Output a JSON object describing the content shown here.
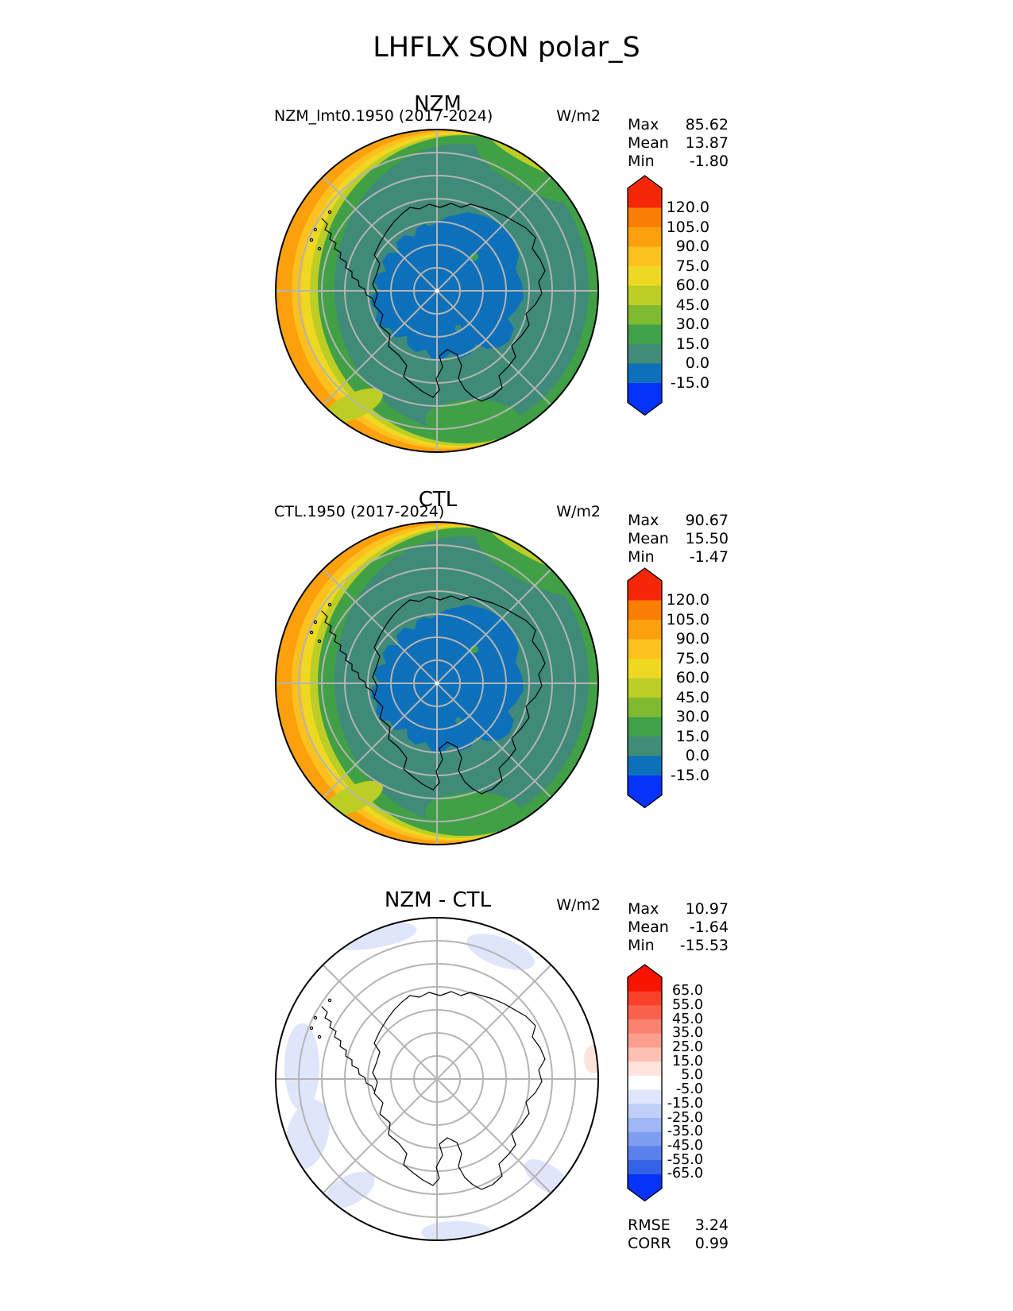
{
  "title": "LHFLX SON polar_S",
  "panels": [
    {
      "name": "NZM",
      "left_label": "NZM_lmt0.1950 (2017-2024)",
      "center_label": "NZM",
      "units": "W/m2",
      "stats": [
        {
          "label": "Max",
          "value": "85.62"
        },
        {
          "label": "Mean",
          "value": "13.87"
        },
        {
          "label": "Min",
          "value": "-1.80"
        }
      ],
      "colorbar": {
        "ticks": [
          "120.0",
          "105.0",
          "90.0",
          "75.0",
          "60.0",
          "45.0",
          "30.0",
          "15.0",
          "0.0",
          "-15.0"
        ],
        "colors": [
          "#F42808",
          "#FA7E04",
          "#FCA00C",
          "#FCC11E",
          "#EFD822",
          "#BCCE26",
          "#7FBA30",
          "#3FA14A",
          "#418C79",
          "#0D70BA",
          "#0633FA"
        ]
      }
    },
    {
      "name": "CTL",
      "left_label": "CTL.1950 (2017-2024)",
      "center_label": "CTL",
      "units": "W/m2",
      "stats": [
        {
          "label": "Max",
          "value": "90.67"
        },
        {
          "label": "Mean",
          "value": "15.50"
        },
        {
          "label": "Min",
          "value": "-1.47"
        }
      ],
      "colorbar": {
        "ticks": [
          "120.0",
          "105.0",
          "90.0",
          "75.0",
          "60.0",
          "45.0",
          "30.0",
          "15.0",
          "0.0",
          "-15.0"
        ],
        "colors": [
          "#F42808",
          "#FA7E04",
          "#FCA00C",
          "#FCC11E",
          "#EFD822",
          "#BCCE26",
          "#7FBA30",
          "#3FA14A",
          "#418C79",
          "#0D70BA",
          "#0633FA"
        ]
      }
    },
    {
      "name": "NZM - CTL",
      "center_label": "NZM - CTL",
      "units": "W/m2",
      "stats": [
        {
          "label": "Max",
          "value": "10.97"
        },
        {
          "label": "Mean",
          "value": "-1.64"
        },
        {
          "label": "Min",
          "value": "-15.53"
        }
      ],
      "colorbar": {
        "ticks": [
          "65.0",
          "55.0",
          "45.0",
          "35.0",
          "25.0",
          "15.0",
          "5.0",
          "-5.0",
          "-15.0",
          "-25.0",
          "-35.0",
          "-45.0",
          "-55.0",
          "-65.0"
        ],
        "colors": [
          "#F81400",
          "#F9402A",
          "#FA614C",
          "#FB826E",
          "#FC9F8F",
          "#FDC1B4",
          "#FEE3DC",
          "#FFFFFF",
          "#DFE6FB",
          "#C0CFF8",
          "#9FB7F4",
          "#7E9DF0",
          "#5A81EB",
          "#3563E6",
          "#0633FA"
        ]
      },
      "extra_stats": [
        {
          "label": "RMSE",
          "value": "3.24"
        },
        {
          "label": "CORR",
          "value": "0.99"
        }
      ]
    }
  ],
  "map_palette": {
    "ocean_teal": "#3F8A78",
    "interior_blue": "#0D70BA",
    "coastal_green": "#41A046",
    "edge_yellow_green": "#BCCE26",
    "edge_yellow": "#EFD822",
    "edge_amber": "#FCC11E",
    "edge_orange": "#FCA00C",
    "diff_negative_blue": "#DFE6FB",
    "diff_positive_pink": "#FEE3DC",
    "gridline_gray": "#B4B4B4"
  },
  "chart_data": [
    {
      "type": "heatmap",
      "title": "NZM",
      "subtitle": "NZM_lmt0.1950 (2017-2024)",
      "units": "W/m2",
      "projection": "south polar stereographic",
      "levels": [
        -15.0,
        0.0,
        15.0,
        30.0,
        45.0,
        60.0,
        75.0,
        90.0,
        105.0,
        120.0
      ],
      "stats": {
        "max": 85.62,
        "mean": 13.87,
        "min": -1.8
      },
      "legend_position": "right"
    },
    {
      "type": "heatmap",
      "title": "CTL",
      "subtitle": "CTL.1950 (2017-2024)",
      "units": "W/m2",
      "projection": "south polar stereographic",
      "levels": [
        -15.0,
        0.0,
        15.0,
        30.0,
        45.0,
        60.0,
        75.0,
        90.0,
        105.0,
        120.0
      ],
      "stats": {
        "max": 90.67,
        "mean": 15.5,
        "min": -1.47
      },
      "legend_position": "right"
    },
    {
      "type": "heatmap",
      "title": "NZM - CTL",
      "units": "W/m2",
      "projection": "south polar stereographic",
      "levels": [
        -65.0,
        -55.0,
        -45.0,
        -35.0,
        -25.0,
        -15.0,
        -5.0,
        5.0,
        15.0,
        25.0,
        35.0,
        45.0,
        55.0,
        65.0
      ],
      "stats": {
        "max": 10.97,
        "mean": -1.64,
        "min": -15.53,
        "rmse": 3.24,
        "corr": 0.99
      },
      "legend_position": "right"
    }
  ]
}
